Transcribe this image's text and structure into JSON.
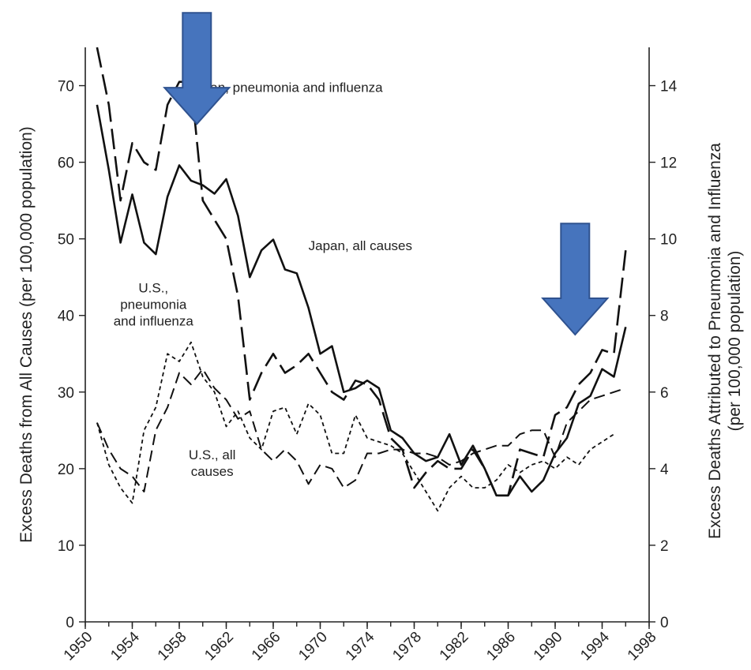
{
  "chart_data": {
    "type": "line",
    "title": "",
    "xlabel": "",
    "ylabel": "Excess Deaths from All Causes (per 100,000 population)",
    "ylabel_right": [
      "Excess Deaths Attributed to Pneumonia and Influenza",
      "(per 100,000 population)"
    ],
    "xlim": [
      1950,
      1998
    ],
    "ylim": [
      0,
      75
    ],
    "ylim_right": [
      0,
      15
    ],
    "x_ticks": [
      "1950",
      "1954",
      "1958",
      "1962",
      "1966",
      "1970",
      "1974",
      "1978",
      "1982",
      "1986",
      "1990",
      "1994",
      "1998"
    ],
    "y_ticks": [
      "0",
      "10",
      "20",
      "30",
      "40",
      "50",
      "60",
      "70"
    ],
    "y_ticks_right": [
      "0",
      "2",
      "4",
      "6",
      "8",
      "10",
      "12",
      "14"
    ],
    "grid": false,
    "annotations": [
      {
        "key": "jp_pi",
        "lines": [
          "Japan, pneumonia and influenza"
        ],
        "x": 1958.8,
        "y": 69.2
      },
      {
        "key": "jp_all",
        "lines": [
          "Japan, all causes"
        ],
        "x": 1969.0,
        "y": 48.5
      },
      {
        "key": "us_pi",
        "lines": [
          "U.S.,",
          "pneumonia",
          "and influenza"
        ],
        "x": 1955.8,
        "y": 43.0
      },
      {
        "key": "us_all",
        "lines": [
          "U.S., all",
          "causes"
        ],
        "x": 1960.8,
        "y": 21.2
      }
    ],
    "series": [
      {
        "key": "japan_all",
        "axis": "left",
        "style": "solid",
        "x": [
          1951,
          1952,
          1953,
          1954,
          1955,
          1956,
          1957,
          1958,
          1959,
          1960,
          1961,
          1962,
          1963,
          1964,
          1965,
          1966,
          1967,
          1968,
          1969,
          1970,
          1971,
          1972,
          1973,
          1974,
          1975,
          1976,
          1977,
          1978,
          1979,
          1980,
          1981,
          1982,
          1983,
          1984,
          1985,
          1986,
          1987,
          1988,
          1989,
          1990,
          1991,
          1992,
          1993,
          1994,
          1995,
          1996
        ],
        "values": [
          67.5,
          59,
          49.5,
          55.8,
          49.5,
          48,
          55.5,
          59.6,
          57.6,
          57,
          55.9,
          57.8,
          53,
          45,
          48.5,
          49.9,
          46,
          45.5,
          41,
          35,
          36,
          30,
          30.5,
          31.5,
          30.5,
          25,
          24,
          22,
          21,
          21.5,
          24.5,
          20.5,
          23,
          20,
          16.5,
          16.5,
          19,
          17,
          18.5,
          22,
          24,
          28.5,
          29.5,
          33,
          32,
          38.5
        ]
      },
      {
        "key": "japan_pi",
        "axis": "right",
        "style": "longdash",
        "x": [
          1951,
          1952,
          1953,
          1954,
          1955,
          1956,
          1957,
          1958,
          1959,
          1960,
          1961,
          1962,
          1963,
          1964,
          1965,
          1966,
          1967,
          1968,
          1969,
          1970,
          1971,
          1972,
          1973,
          1974,
          1975,
          1976,
          1977,
          1978,
          1979,
          1980,
          1981,
          1982,
          1983,
          1984,
          1985,
          1986,
          1987,
          1988,
          1989,
          1990,
          1991,
          1992,
          1993,
          1994,
          1995,
          1996
        ],
        "values": [
          15,
          13.5,
          11,
          12.5,
          12,
          11.8,
          13.5,
          14.1,
          14.1,
          11,
          10.5,
          10,
          8.5,
          5.8,
          6.5,
          7,
          6.5,
          6.7,
          7,
          6.5,
          6,
          5.8,
          6.3,
          6.2,
          5.8,
          4.8,
          4.5,
          3.5,
          3.9,
          4.2,
          4,
          4,
          4.5,
          4,
          3.3,
          3.3,
          4.5,
          4.4,
          4.3,
          5.4,
          5.6,
          6.2,
          6.5,
          7.1,
          7,
          9.7
        ]
      },
      {
        "key": "us_pi",
        "axis": "right",
        "style": "mediumdash",
        "x": [
          1951,
          1952,
          1953,
          1954,
          1955,
          1956,
          1957,
          1958,
          1959,
          1960,
          1961,
          1962,
          1963,
          1964,
          1965,
          1966,
          1967,
          1968,
          1969,
          1970,
          1971,
          1972,
          1973,
          1974,
          1975,
          1976,
          1977,
          1978,
          1979,
          1980,
          1981,
          1982,
          1983,
          1984,
          1985,
          1986,
          1987,
          1988,
          1989,
          1990,
          1991,
          1992,
          1993,
          1994,
          1995,
          1996
        ],
        "values": [
          5.2,
          4.5,
          4,
          3.8,
          3.4,
          5,
          5.6,
          6.5,
          6.2,
          6.6,
          6.1,
          5.8,
          5.3,
          5.5,
          4.5,
          4.2,
          4.5,
          4.2,
          3.6,
          4.1,
          4,
          3.5,
          3.7,
          4.4,
          4.4,
          4.5,
          4.5,
          4.4,
          4.4,
          4.3,
          4.1,
          4.2,
          4.4,
          4.5,
          4.6,
          4.6,
          4.9,
          5,
          5,
          4.3,
          5.2,
          5.5,
          5.8,
          5.9,
          6,
          6.1
        ]
      },
      {
        "key": "us_all",
        "axis": "left",
        "style": "shortdash",
        "x": [
          1951,
          1952,
          1953,
          1954,
          1955,
          1956,
          1957,
          1958,
          1959,
          1960,
          1961,
          1962,
          1963,
          1964,
          1965,
          1966,
          1967,
          1968,
          1969,
          1970,
          1971,
          1972,
          1973,
          1974,
          1975,
          1976,
          1977,
          1978,
          1979,
          1980,
          1981,
          1982,
          1983,
          1984,
          1985,
          1986,
          1987,
          1988,
          1989,
          1990,
          1991,
          1992,
          1993,
          1994,
          1995
        ],
        "values": [
          26,
          20.5,
          17.5,
          15.5,
          25,
          28,
          35,
          34,
          36.5,
          32,
          30,
          25.5,
          27.5,
          24,
          22.5,
          27.5,
          28,
          24.5,
          28.5,
          27,
          22,
          22,
          27,
          24,
          23.5,
          23,
          22,
          19.5,
          17,
          14.5,
          17.5,
          19,
          17.5,
          17.5,
          18.5,
          20.5,
          19.5,
          20.5,
          21,
          20,
          21.5,
          20.5,
          22.5,
          23.5,
          24.5
        ]
      }
    ]
  },
  "highlights": {
    "arrow_color": "#4674bd",
    "arrow_stroke": "#2f528f",
    "arrows": [
      {
        "key": "arrow-1958",
        "x": 1959.5,
        "y_top": 79.5,
        "y_tip": 65
      },
      {
        "key": "arrow-1991",
        "x": 1991.7,
        "y_top": 52,
        "y_tip": 37.5
      }
    ]
  }
}
